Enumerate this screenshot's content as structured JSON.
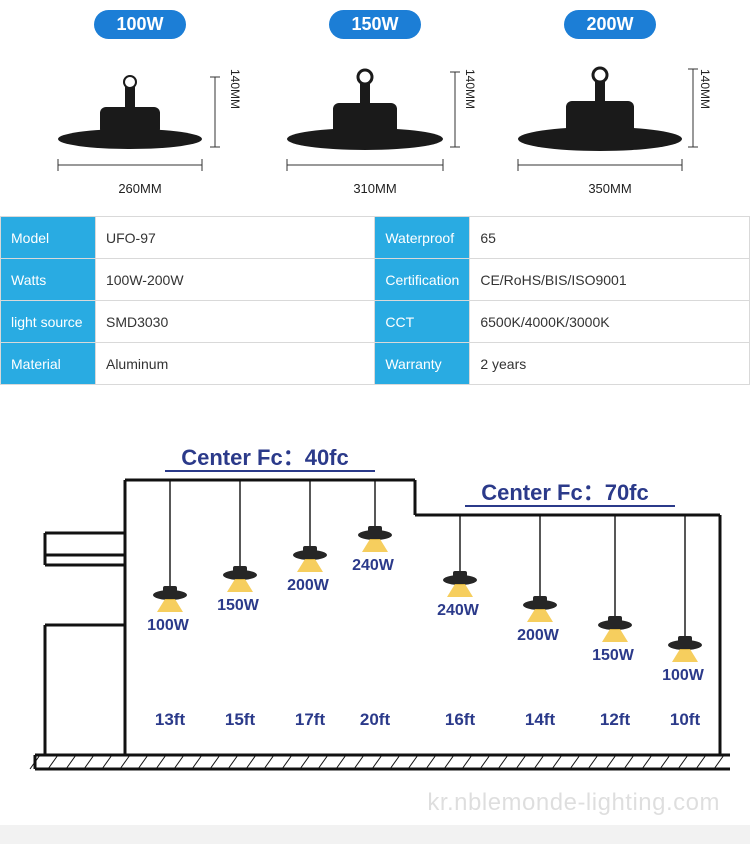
{
  "products": [
    {
      "wattage": "100W",
      "width_mm": "260MM",
      "height_mm": "140MM"
    },
    {
      "wattage": "150W",
      "width_mm": "310MM",
      "height_mm": "140MM"
    },
    {
      "wattage": "200W",
      "width_mm": "350MM",
      "height_mm": "140MM"
    }
  ],
  "colors": {
    "badge_bg": "#1c7ed6",
    "badge_text": "#ffffff",
    "spec_header_bg": "#29abe2",
    "spec_header_text": "#ffffff",
    "spec_border": "#d9d9d9",
    "diagram_text": "#2b3a8a",
    "ufo_body": "#1a1a1a",
    "beam": "#f5c542"
  },
  "specs": [
    [
      "Model",
      "UFO-97",
      "Waterproof",
      "65"
    ],
    [
      "Watts",
      "100W-200W",
      "Certification",
      "CE/RoHS/BIS/ISO9001"
    ],
    [
      "light source",
      "SMD3030",
      "CCT",
      "6500K/4000K/3000K"
    ],
    [
      "Material",
      "Aluminum",
      "Warranty",
      "2 years"
    ]
  ],
  "diagram": {
    "left": {
      "title_prefix": "Center Fc：",
      "title_value": "40fc",
      "lights": [
        {
          "watt": "100W",
          "ft": "13ft",
          "hang": 110
        },
        {
          "watt": "150W",
          "ft": "15ft",
          "hang": 90
        },
        {
          "watt": "200W",
          "ft": "17ft",
          "hang": 70
        },
        {
          "watt": "240W",
          "ft": "20ft",
          "hang": 50
        }
      ]
    },
    "right": {
      "title_prefix": "Center Fc：",
      "title_value": "70fc",
      "lights": [
        {
          "watt": "240W",
          "ft": "16ft",
          "hang": 60
        },
        {
          "watt": "200W",
          "ft": "14ft",
          "hang": 85
        },
        {
          "watt": "150W",
          "ft": "12ft",
          "hang": 105
        },
        {
          "watt": "100W",
          "ft": "10ft",
          "hang": 125
        }
      ]
    }
  },
  "watermark": "kr.nblemonde-lighting.com"
}
